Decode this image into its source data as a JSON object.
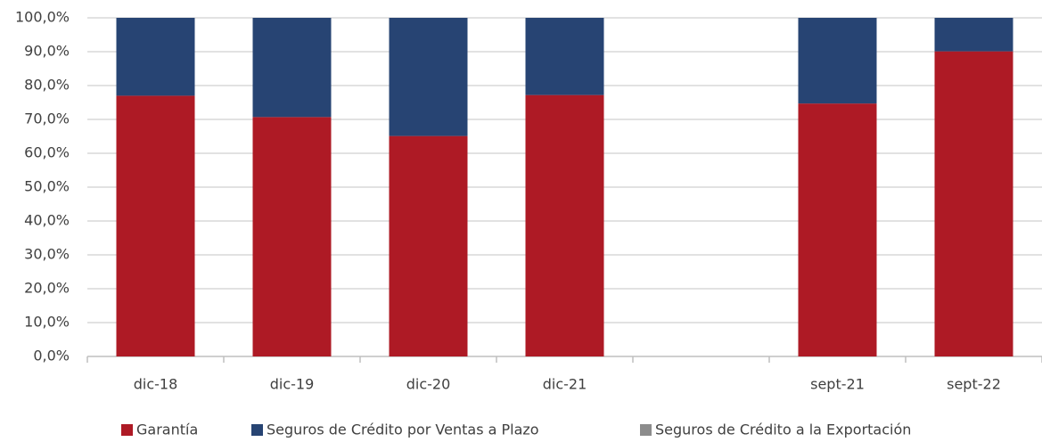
{
  "chart_data": {
    "type": "stacked_bar",
    "categories": [
      "dic-18",
      "dic-19",
      "dic-20",
      "dic-21",
      null,
      "sept-21",
      "sept-22"
    ],
    "series": [
      {
        "name": "Garantía",
        "color": "#ae1a25",
        "values": [
          77.0,
          70.7,
          65.1,
          77.2,
          null,
          74.7,
          90.1
        ]
      },
      {
        "name": "Seguros de Crédito por Ventas a Plazo",
        "color": "#274473",
        "values": [
          23.0,
          29.3,
          34.9,
          22.8,
          null,
          25.3,
          9.9
        ]
      },
      {
        "name": "Seguros de Crédito a la Exportación",
        "color": "#8c8c8c",
        "values": [
          0,
          0,
          0,
          0,
          null,
          0,
          0
        ]
      }
    ],
    "ylim": [
      0,
      100
    ],
    "yticks": [
      {
        "value": 0,
        "label": "0,0%"
      },
      {
        "value": 10,
        "label": "10,0%"
      },
      {
        "value": 20,
        "label": "20,0%"
      },
      {
        "value": 30,
        "label": "30,0%"
      },
      {
        "value": 40,
        "label": "40,0%"
      },
      {
        "value": 50,
        "label": "50,0%"
      },
      {
        "value": 60,
        "label": "60,0%"
      },
      {
        "value": 70,
        "label": "70,0%"
      },
      {
        "value": 80,
        "label": "80,0%"
      },
      {
        "value": 90,
        "label": "90,0%"
      },
      {
        "value": 100,
        "label": "100,0%"
      }
    ],
    "grid": true,
    "legend": "bottom"
  }
}
